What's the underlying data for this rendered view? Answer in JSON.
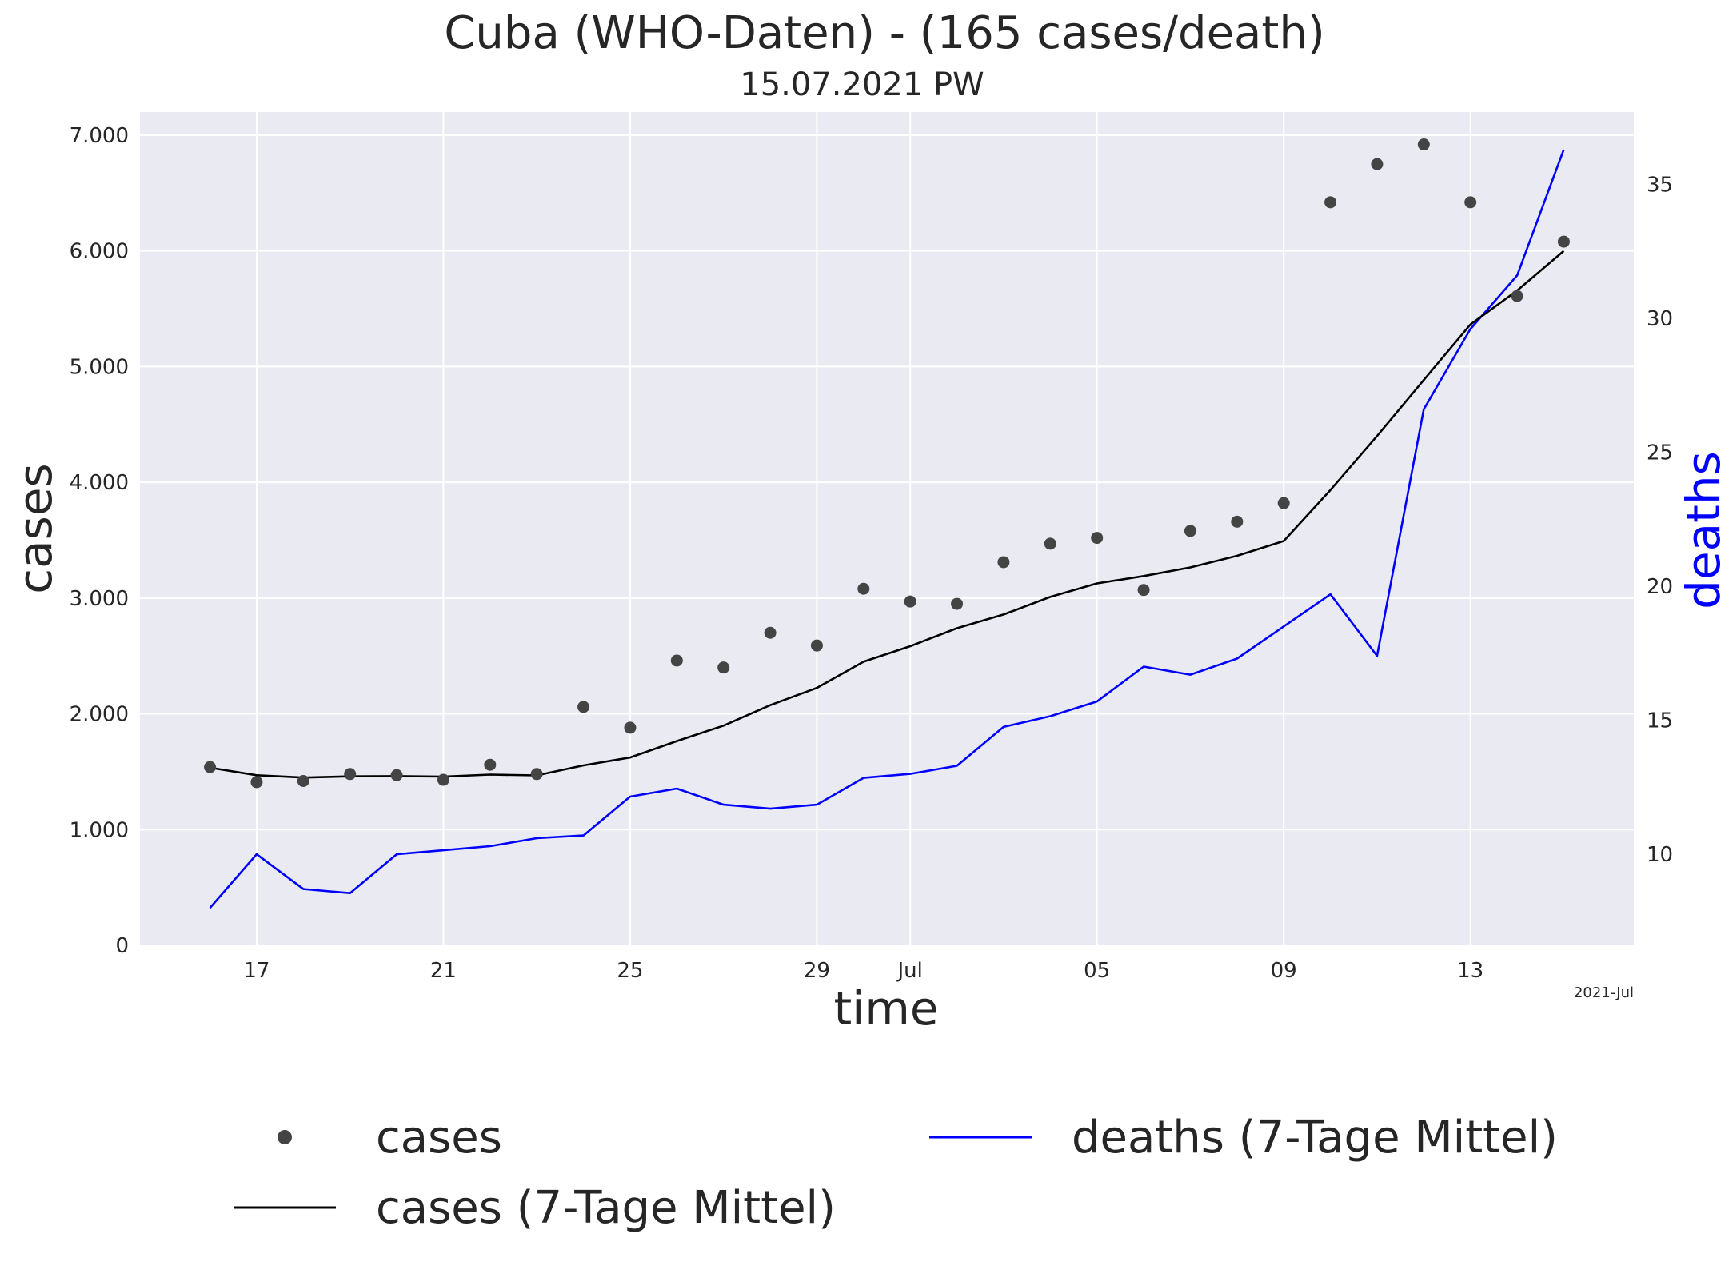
{
  "chart_data": {
    "type": "line",
    "title": "Cuba (WHO-Daten) - (165 cases/death)",
    "subtitle": "15.07.2021 PW",
    "xlabel": "time",
    "ylabel_left": "cases",
    "ylabel_right": "deaths",
    "x_offset_label": "2021-Jul",
    "grid": true,
    "legend_placement": "bottom",
    "x": [
      "2021-06-16",
      "2021-06-17",
      "2021-06-18",
      "2021-06-19",
      "2021-06-20",
      "2021-06-21",
      "2021-06-22",
      "2021-06-23",
      "2021-06-24",
      "2021-06-25",
      "2021-06-26",
      "2021-06-27",
      "2021-06-28",
      "2021-06-29",
      "2021-06-30",
      "2021-07-01",
      "2021-07-02",
      "2021-07-03",
      "2021-07-04",
      "2021-07-05",
      "2021-07-06",
      "2021-07-07",
      "2021-07-08",
      "2021-07-09",
      "2021-07-10",
      "2021-07-11",
      "2021-07-12",
      "2021-07-13",
      "2021-07-14",
      "2021-07-15"
    ],
    "x_ticks": [
      {
        "date": "2021-06-17",
        "label": "17"
      },
      {
        "date": "2021-06-21",
        "label": "21"
      },
      {
        "date": "2021-06-25",
        "label": "25"
      },
      {
        "date": "2021-06-29",
        "label": "29"
      },
      {
        "date": "2021-07-01",
        "label": "Jul"
      },
      {
        "date": "2021-07-05",
        "label": "05"
      },
      {
        "date": "2021-07-09",
        "label": "09"
      },
      {
        "date": "2021-07-13",
        "label": "13"
      }
    ],
    "x_range": [
      "2021-06-14.5",
      "2021-07-16.5"
    ],
    "y_left": {
      "range": [
        0,
        7200
      ],
      "ticks": [
        0,
        1000,
        2000,
        3000,
        4000,
        5000,
        6000,
        7000
      ],
      "tick_labels": [
        "0",
        "1.000",
        "2.000",
        "3.000",
        "4.000",
        "5.000",
        "6.000",
        "7.000"
      ]
    },
    "y_right": {
      "range": [
        6.6,
        37.7
      ],
      "ticks": [
        10,
        15,
        20,
        25,
        30,
        35
      ],
      "tick_labels": [
        "10",
        "15",
        "20",
        "25",
        "30",
        "35"
      ]
    },
    "series": [
      {
        "name": "cases",
        "kind": "scatter",
        "axis": "left",
        "color": "#444444",
        "values": [
          1540,
          1410,
          1420,
          1480,
          1470,
          1430,
          1560,
          1480,
          2060,
          1880,
          2460,
          2400,
          2700,
          2590,
          3080,
          2970,
          2950,
          3310,
          3470,
          3520,
          3070,
          3580,
          3660,
          3820,
          6420,
          6750,
          6920,
          6420,
          5610,
          6080
        ]
      },
      {
        "name": "cases (7-Tage Mittel)",
        "kind": "line",
        "axis": "left",
        "color": "#000000",
        "values": [
          1535,
          1470,
          1450,
          1460,
          1462,
          1458,
          1475,
          1468,
          1555,
          1623,
          1765,
          1898,
          2075,
          2224,
          2450,
          2584,
          2740,
          2858,
          3010,
          3127,
          3190,
          3265,
          3365,
          3493,
          3934,
          4400,
          4884,
          5364,
          5657,
          6000
        ]
      },
      {
        "name": "deaths (7-Tage Mittel)",
        "kind": "line",
        "axis": "right",
        "color": "#0000ff",
        "values": [
          8.0,
          10.0,
          8.7,
          8.55,
          10.0,
          10.15,
          10.3,
          10.6,
          10.7,
          12.15,
          12.45,
          11.85,
          11.7,
          11.85,
          12.85,
          13.0,
          13.3,
          14.75,
          15.15,
          15.7,
          17.0,
          16.7,
          17.3,
          18.5,
          19.7,
          17.4,
          26.6,
          29.6,
          31.6,
          36.3
        ]
      }
    ]
  }
}
